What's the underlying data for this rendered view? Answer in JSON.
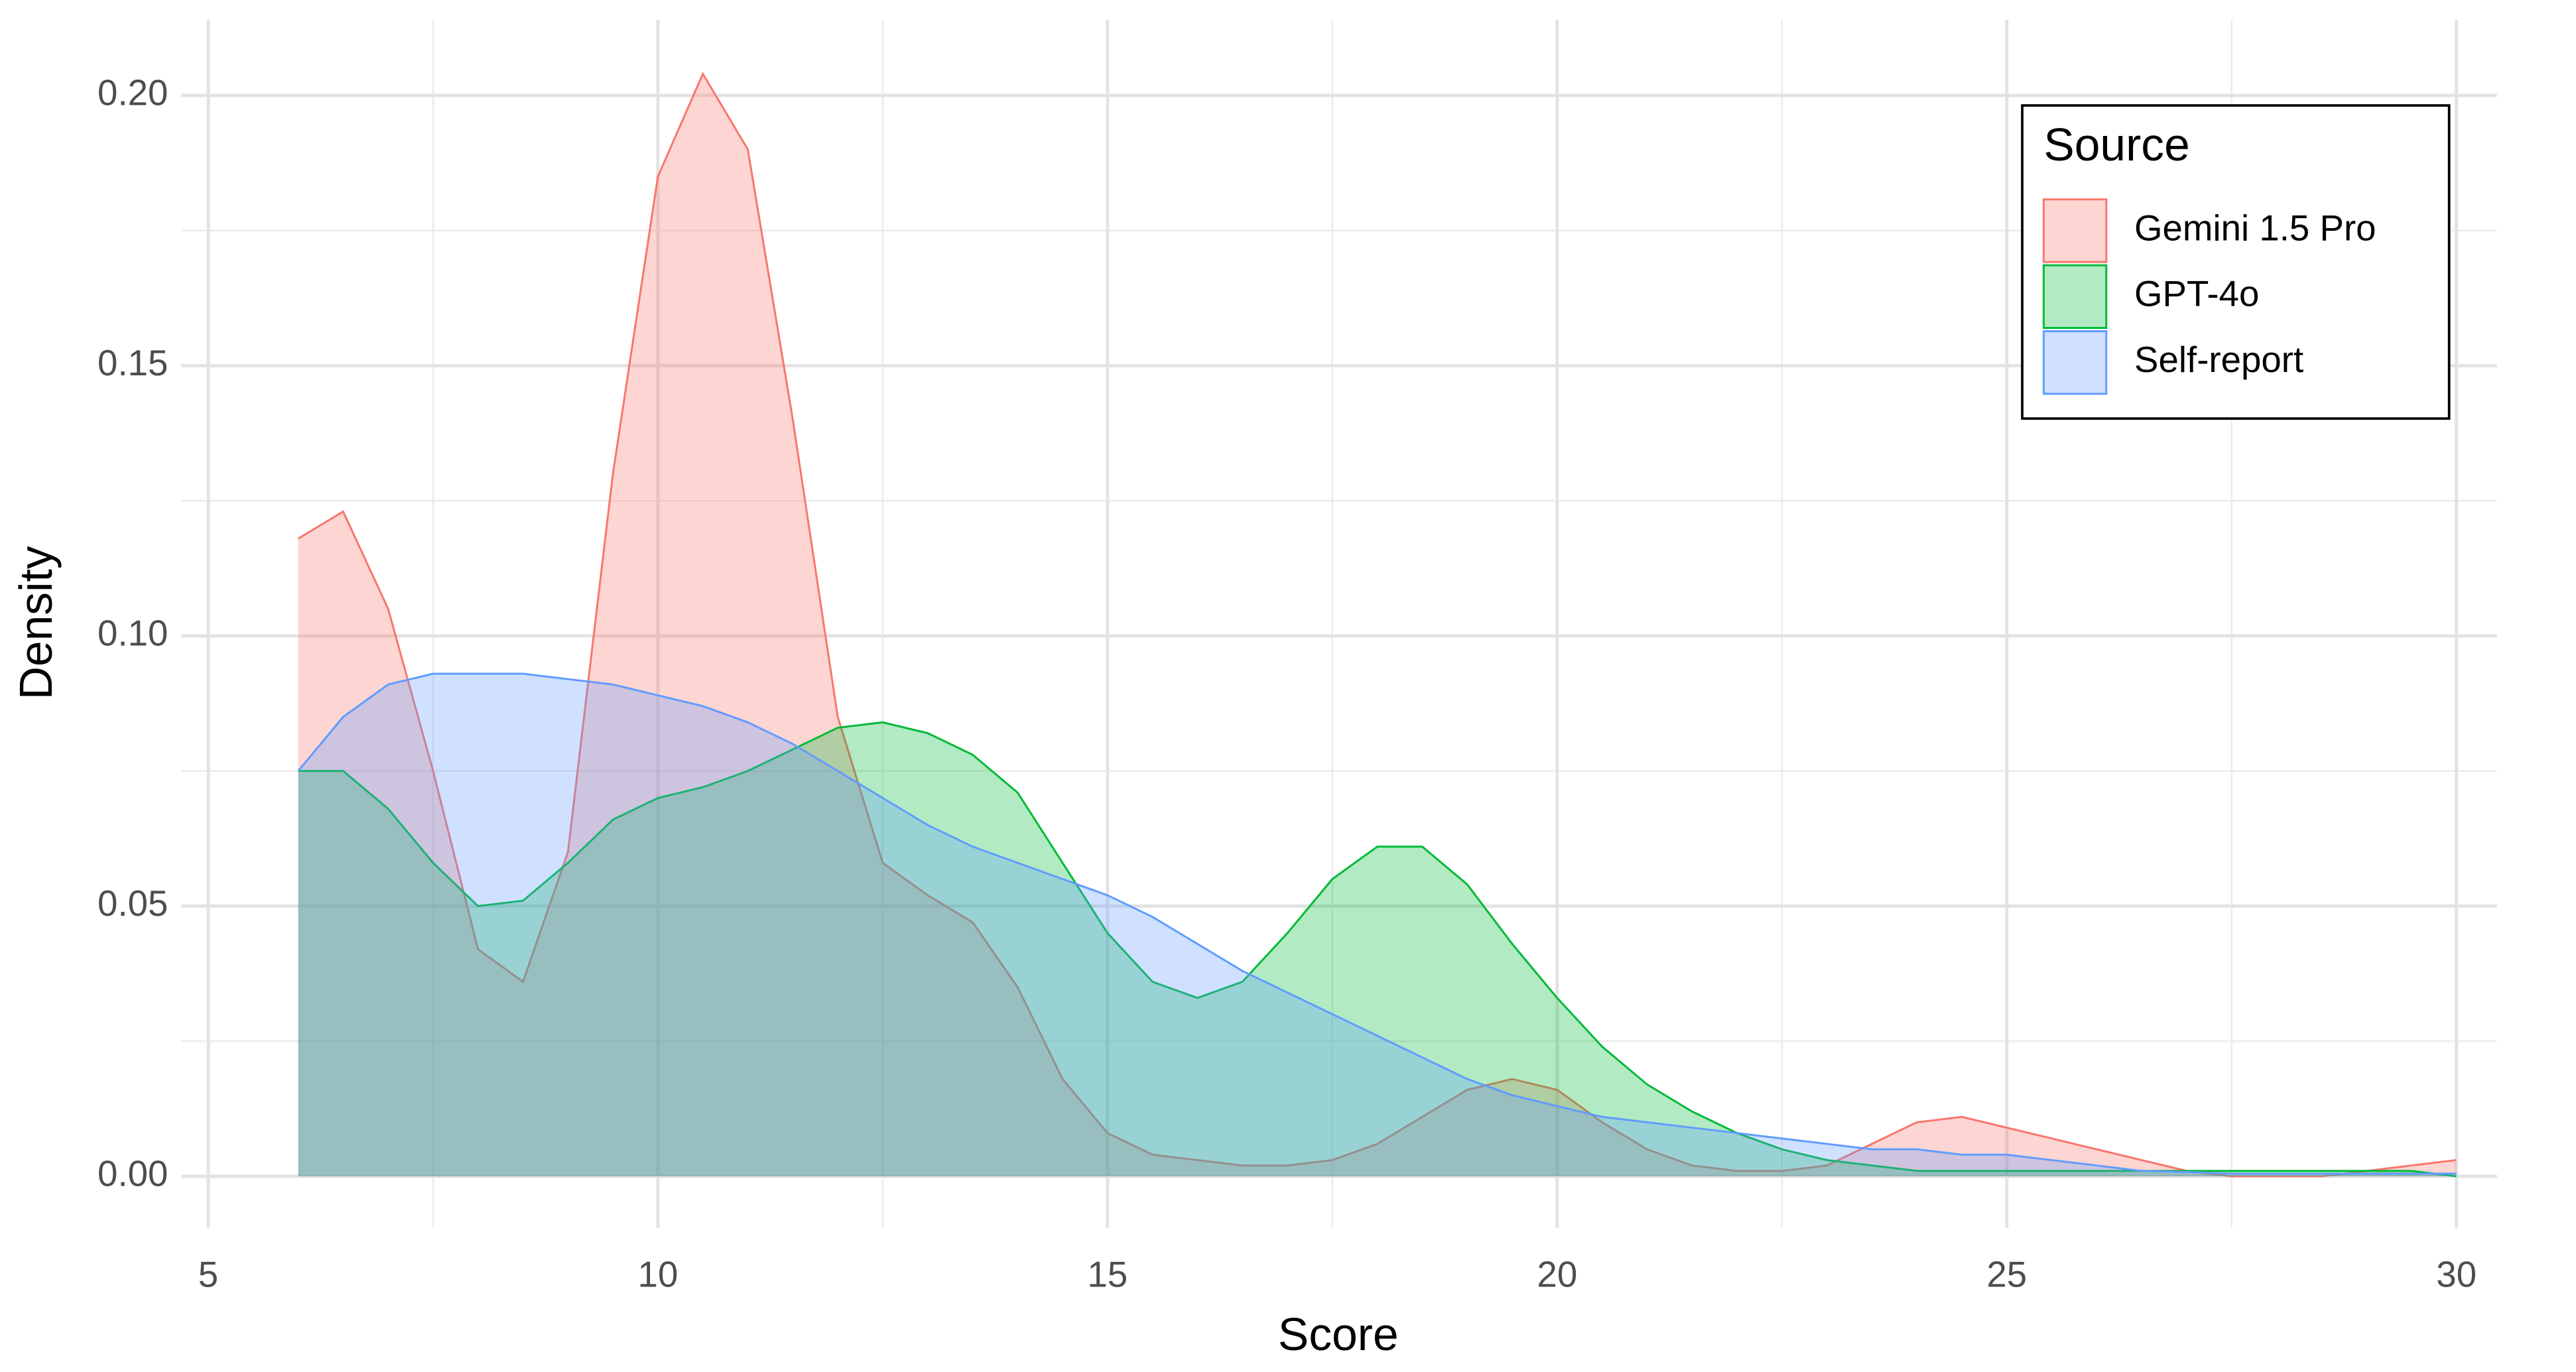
{
  "chart_data": {
    "type": "density",
    "x_label": "Score",
    "y_label": "Density",
    "legend_title": "Source",
    "legend_position": "top-right",
    "grid": true,
    "minor_grid": true,
    "fill_opacity": 0.3,
    "xlim": [
      4.7,
      30.45
    ],
    "ylim": [
      -0.0095,
      0.214
    ],
    "xticks": [
      5,
      10,
      15,
      20,
      25,
      30
    ],
    "yticks": [
      {
        "value": 0,
        "label": "0.00"
      },
      {
        "value": 0.05,
        "label": "0.05"
      },
      {
        "value": 0.1,
        "label": "0.10"
      },
      {
        "value": 0.15,
        "label": "0.15"
      },
      {
        "value": 0.2,
        "label": "0.20"
      }
    ],
    "x": [
      6,
      6.5,
      7,
      7.5,
      8,
      8.5,
      9,
      9.5,
      10,
      10.5,
      11,
      11.5,
      12,
      12.5,
      13,
      13.5,
      14,
      14.5,
      15,
      15.5,
      16,
      16.5,
      17,
      17.5,
      18,
      18.5,
      19,
      19.5,
      20,
      20.5,
      21,
      21.5,
      22,
      22.5,
      23,
      23.5,
      24,
      24.5,
      25,
      25.5,
      26,
      26.5,
      27,
      27.5,
      28,
      28.5,
      29,
      29.5,
      30
    ],
    "series": [
      {
        "name": "Gemini 1.5 Pro",
        "color": "#F8766D",
        "values": [
          0.118,
          0.123,
          0.105,
          0.075,
          0.042,
          0.036,
          0.06,
          0.13,
          0.185,
          0.204,
          0.19,
          0.14,
          0.085,
          0.058,
          0.052,
          0.047,
          0.035,
          0.018,
          0.008,
          0.004,
          0.003,
          0.002,
          0.002,
          0.003,
          0.006,
          0.011,
          0.016,
          0.018,
          0.016,
          0.01,
          0.005,
          0.002,
          0.001,
          0.001,
          0.002,
          0.006,
          0.01,
          0.011,
          0.009,
          0.007,
          0.005,
          0.003,
          0.001,
          0,
          0,
          0,
          0.001,
          0.002,
          0.003
        ]
      },
      {
        "name": "GPT-4o",
        "color": "#00BA38",
        "values": [
          0.075,
          0.075,
          0.068,
          0.058,
          0.05,
          0.051,
          0.058,
          0.066,
          0.07,
          0.072,
          0.075,
          0.079,
          0.083,
          0.084,
          0.082,
          0.078,
          0.071,
          0.058,
          0.045,
          0.036,
          0.033,
          0.036,
          0.045,
          0.055,
          0.061,
          0.061,
          0.054,
          0.043,
          0.033,
          0.024,
          0.017,
          0.012,
          0.008,
          0.005,
          0.003,
          0.002,
          0.001,
          0.001,
          0.001,
          0.001,
          0.001,
          0.001,
          0.001,
          0.001,
          0.001,
          0.001,
          0.001,
          0.001,
          0
        ]
      },
      {
        "name": "Self-report",
        "color": "#619CFF",
        "values": [
          0.075,
          0.085,
          0.091,
          0.093,
          0.093,
          0.093,
          0.092,
          0.091,
          0.089,
          0.087,
          0.084,
          0.08,
          0.075,
          0.07,
          0.065,
          0.061,
          0.058,
          0.055,
          0.052,
          0.048,
          0.043,
          0.038,
          0.034,
          0.03,
          0.026,
          0.022,
          0.018,
          0.015,
          0.013,
          0.011,
          0.01,
          0.009,
          0.008,
          0.007,
          0.006,
          0.005,
          0.005,
          0.004,
          0.004,
          0.003,
          0.002,
          0.001,
          0.0008,
          0.0005,
          0.0005,
          0.0005,
          0.0005,
          0.0005,
          0.0005
        ]
      }
    ]
  }
}
